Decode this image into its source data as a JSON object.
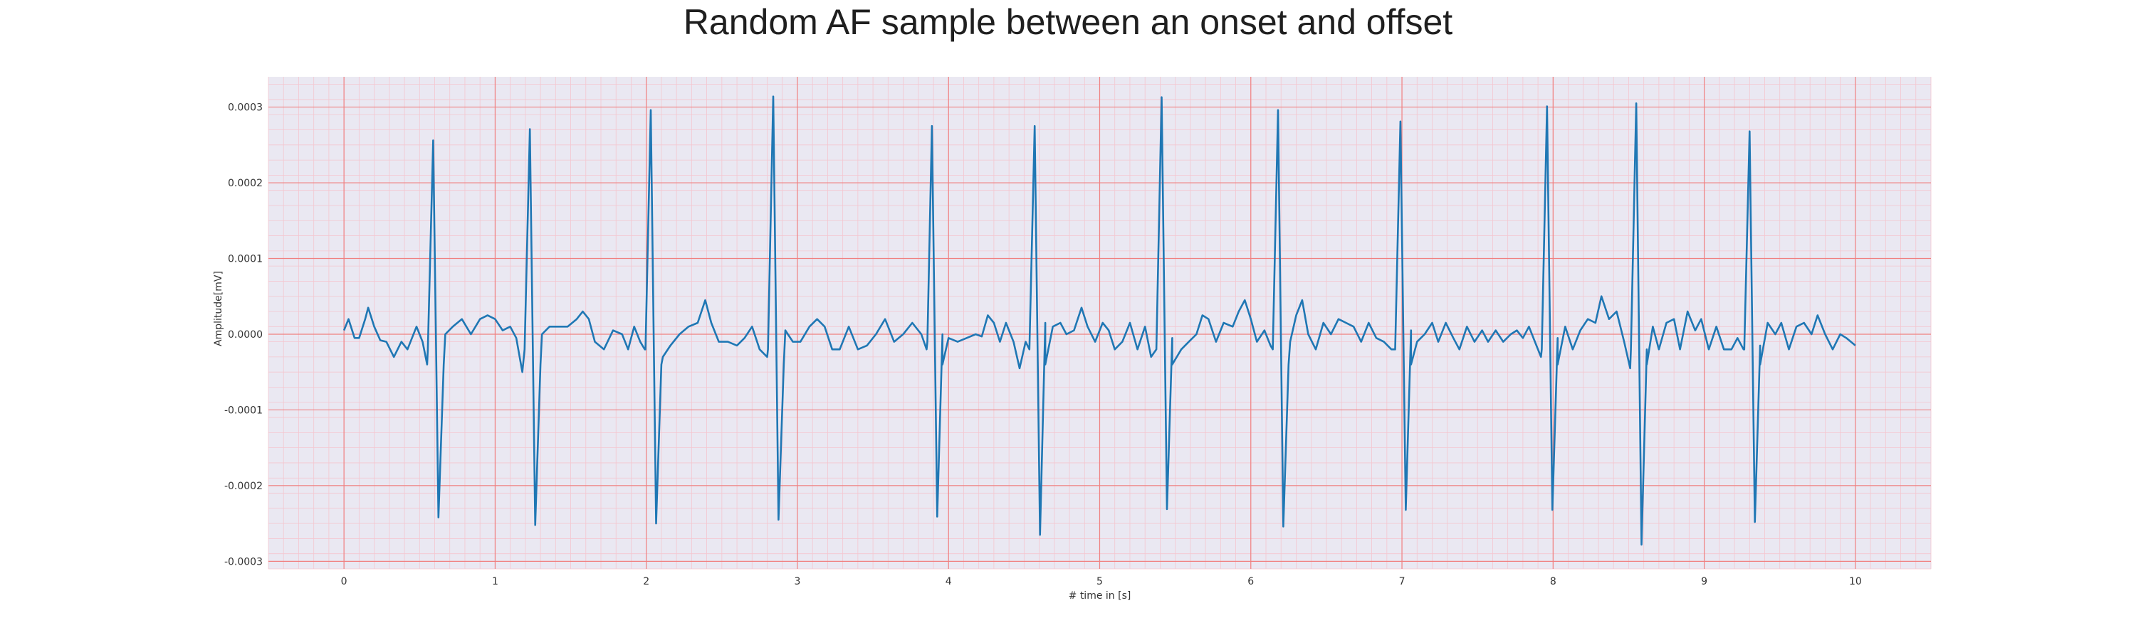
{
  "chart_data": {
    "type": "line",
    "title": "Random AF sample between an onset and offset",
    "xlabel": "# time in [s]",
    "ylabel": "Amplitude[mV]",
    "xlim": [
      -0.5,
      10.5
    ],
    "ylim": [
      -0.00031,
      0.00034
    ],
    "x_ticks": [
      0,
      1,
      2,
      3,
      4,
      5,
      6,
      7,
      8,
      9,
      10
    ],
    "x_tick_labels": [
      "0",
      "1",
      "2",
      "3",
      "4",
      "5",
      "6",
      "7",
      "8",
      "9",
      "10"
    ],
    "y_ticks": [
      0.0003,
      0.0002,
      0.0001,
      0.0,
      -0.0001,
      -0.0002,
      -0.0003
    ],
    "y_tick_labels": [
      "0.0003",
      "0.0002",
      "0.0001",
      "0.0000",
      "-0.0001",
      "-0.0002",
      "-0.0003"
    ],
    "grid": {
      "major": true,
      "minor": true
    },
    "colors": {
      "background": "#eae8f2",
      "major_grid": "#f08080",
      "minor_grid": "#f4c6cf",
      "line": "#1f77b4"
    },
    "beats": [
      {
        "t": 0.59,
        "peak": 0.000256,
        "trough": -0.000242
      },
      {
        "t": 1.23,
        "peak": 0.000271,
        "trough": -0.000252
      },
      {
        "t": 2.03,
        "peak": 0.000296,
        "trough": -0.00025
      },
      {
        "t": 2.84,
        "peak": 0.000314,
        "trough": -0.000245
      },
      {
        "t": 3.89,
        "peak": 0.000275,
        "trough": -0.000241
      },
      {
        "t": 4.57,
        "peak": 0.000275,
        "trough": -0.000265
      },
      {
        "t": 5.41,
        "peak": 0.000313,
        "trough": -0.000231
      },
      {
        "t": 6.18,
        "peak": 0.000296,
        "trough": -0.000254
      },
      {
        "t": 6.99,
        "peak": 0.000281,
        "trough": -0.000232
      },
      {
        "t": 7.96,
        "peak": 0.000301,
        "trough": -0.000232
      },
      {
        "t": 8.55,
        "peak": 0.000305,
        "trough": -0.000278
      },
      {
        "t": 9.3,
        "peak": 0.000268,
        "trough": -0.000248
      }
    ],
    "baseline": [
      [
        0.0,
        5e-06
      ],
      [
        0.03,
        2e-05
      ],
      [
        0.07,
        -5e-06
      ],
      [
        0.1,
        -5e-06
      ],
      [
        0.14,
        2e-05
      ],
      [
        0.16,
        3.5e-05
      ],
      [
        0.2,
        1e-05
      ],
      [
        0.24,
        -8e-06
      ],
      [
        0.28,
        -1e-05
      ],
      [
        0.33,
        -3e-05
      ],
      [
        0.38,
        -1e-05
      ],
      [
        0.42,
        -2e-05
      ],
      [
        0.48,
        1e-05
      ],
      [
        0.52,
        -1e-05
      ],
      [
        0.55,
        -4e-05
      ],
      [
        0.67,
        0.0
      ],
      [
        0.72,
        1e-05
      ],
      [
        0.78,
        2e-05
      ],
      [
        0.84,
        0.0
      ],
      [
        0.9,
        2e-05
      ],
      [
        0.95,
        2.5e-05
      ],
      [
        1.0,
        2e-05
      ],
      [
        1.05,
        5e-06
      ],
      [
        1.1,
        1e-05
      ],
      [
        1.14,
        -5e-06
      ],
      [
        1.18,
        -5e-05
      ],
      [
        1.31,
        0.0
      ],
      [
        1.36,
        1e-05
      ],
      [
        1.42,
        1e-05
      ],
      [
        1.48,
        1e-05
      ],
      [
        1.54,
        2e-05
      ],
      [
        1.58,
        3e-05
      ],
      [
        1.62,
        2e-05
      ],
      [
        1.66,
        -1e-05
      ],
      [
        1.72,
        -2e-05
      ],
      [
        1.78,
        5e-06
      ],
      [
        1.84,
        0.0
      ],
      [
        1.88,
        -2e-05
      ],
      [
        1.92,
        1e-05
      ],
      [
        1.96,
        -1e-05
      ],
      [
        1.99,
        -2e-05
      ],
      [
        2.11,
        -3e-05
      ],
      [
        2.16,
        -1.5e-05
      ],
      [
        2.22,
        0.0
      ],
      [
        2.28,
        1e-05
      ],
      [
        2.34,
        1.5e-05
      ],
      [
        2.39,
        4.5e-05
      ],
      [
        2.43,
        1.5e-05
      ],
      [
        2.48,
        -1e-05
      ],
      [
        2.54,
        -1e-05
      ],
      [
        2.6,
        -1.5e-05
      ],
      [
        2.65,
        -5e-06
      ],
      [
        2.7,
        1e-05
      ],
      [
        2.75,
        -2e-05
      ],
      [
        2.8,
        -3e-05
      ],
      [
        2.92,
        5e-06
      ],
      [
        2.97,
        -1e-05
      ],
      [
        3.02,
        -1e-05
      ],
      [
        3.08,
        1e-05
      ],
      [
        3.13,
        2e-05
      ],
      [
        3.18,
        1e-05
      ],
      [
        3.23,
        -2e-05
      ],
      [
        3.28,
        -2e-05
      ],
      [
        3.34,
        1e-05
      ],
      [
        3.4,
        -2e-05
      ],
      [
        3.46,
        -1.5e-05
      ],
      [
        3.52,
        0.0
      ],
      [
        3.58,
        2e-05
      ],
      [
        3.64,
        -1e-05
      ],
      [
        3.7,
        0.0
      ],
      [
        3.76,
        1.5e-05
      ],
      [
        3.82,
        0.0
      ],
      [
        3.86,
        -1e-05
      ],
      [
        3.96,
        0.0
      ],
      [
        4.0,
        -5e-06
      ],
      [
        4.06,
        -1e-05
      ],
      [
        4.12,
        -5e-06
      ],
      [
        4.18,
        0.0
      ],
      [
        4.22,
        -3e-06
      ],
      [
        4.26,
        2.5e-05
      ],
      [
        4.3,
        1.5e-05
      ],
      [
        4.34,
        -1e-05
      ],
      [
        4.38,
        1.5e-05
      ],
      [
        4.43,
        -1e-05
      ],
      [
        4.47,
        -4.5e-05
      ],
      [
        4.51,
        -1e-05
      ],
      [
        4.64,
        1.5e-05
      ],
      [
        4.69,
        1e-05
      ],
      [
        4.74,
        1.5e-05
      ],
      [
        4.78,
        0.0
      ],
      [
        4.83,
        5e-06
      ],
      [
        4.88,
        3.5e-05
      ],
      [
        4.92,
        1e-05
      ],
      [
        4.97,
        -1e-05
      ],
      [
        5.02,
        1.5e-05
      ],
      [
        5.06,
        5e-06
      ],
      [
        5.1,
        -2e-05
      ],
      [
        5.15,
        -1e-05
      ],
      [
        5.2,
        1.5e-05
      ],
      [
        5.25,
        -2e-05
      ],
      [
        5.3,
        1e-05
      ],
      [
        5.34,
        -3e-05
      ],
      [
        5.48,
        -5e-06
      ],
      [
        5.54,
        -2e-05
      ],
      [
        5.59,
        -1e-05
      ],
      [
        5.64,
        0.0
      ],
      [
        5.68,
        2.5e-05
      ],
      [
        5.72,
        2e-05
      ],
      [
        5.77,
        -1e-05
      ],
      [
        5.82,
        1.5e-05
      ],
      [
        5.88,
        1e-05
      ],
      [
        5.92,
        3e-05
      ],
      [
        5.96,
        4.5e-05
      ],
      [
        6.0,
        2e-05
      ],
      [
        6.04,
        -1e-05
      ],
      [
        6.09,
        5e-06
      ],
      [
        6.13,
        -1.5e-05
      ],
      [
        6.26,
        -1e-05
      ],
      [
        6.3,
        2.5e-05
      ],
      [
        6.34,
        4.5e-05
      ],
      [
        6.38,
        0.0
      ],
      [
        6.43,
        -2e-05
      ],
      [
        6.48,
        1.5e-05
      ],
      [
        6.53,
        0.0
      ],
      [
        6.58,
        2e-05
      ],
      [
        6.63,
        1.5e-05
      ],
      [
        6.68,
        1e-05
      ],
      [
        6.73,
        -1e-05
      ],
      [
        6.78,
        1.5e-05
      ],
      [
        6.83,
        -5e-06
      ],
      [
        6.88,
        -1e-05
      ],
      [
        6.93,
        -2e-05
      ],
      [
        7.06,
        5e-06
      ],
      [
        7.1,
        -1e-05
      ],
      [
        7.15,
        0.0
      ],
      [
        7.2,
        1.5e-05
      ],
      [
        7.24,
        -1e-05
      ],
      [
        7.29,
        1.5e-05
      ],
      [
        7.34,
        -5e-06
      ],
      [
        7.38,
        -2e-05
      ],
      [
        7.43,
        1e-05
      ],
      [
        7.48,
        -1e-05
      ],
      [
        7.53,
        5e-06
      ],
      [
        7.57,
        -1e-05
      ],
      [
        7.62,
        5e-06
      ],
      [
        7.67,
        -1e-05
      ],
      [
        7.72,
        0.0
      ],
      [
        7.76,
        5e-06
      ],
      [
        7.8,
        -5e-06
      ],
      [
        7.84,
        1e-05
      ],
      [
        7.88,
        -1e-05
      ],
      [
        7.92,
        -3e-05
      ],
      [
        8.03,
        -5e-06
      ],
      [
        8.08,
        1e-05
      ],
      [
        8.13,
        -2e-05
      ],
      [
        8.18,
        5e-06
      ],
      [
        8.23,
        2e-05
      ],
      [
        8.28,
        1.5e-05
      ],
      [
        8.32,
        5e-05
      ],
      [
        8.37,
        2e-05
      ],
      [
        8.42,
        3e-05
      ],
      [
        8.47,
        -1e-05
      ],
      [
        8.51,
        -4.5e-05
      ],
      [
        8.62,
        -2e-05
      ],
      [
        8.66,
        1e-05
      ],
      [
        8.7,
        -2e-05
      ],
      [
        8.75,
        1.5e-05
      ],
      [
        8.8,
        2e-05
      ],
      [
        8.84,
        -2e-05
      ],
      [
        8.89,
        3e-05
      ],
      [
        8.94,
        5e-06
      ],
      [
        8.98,
        2e-05
      ],
      [
        9.03,
        -2e-05
      ],
      [
        9.08,
        1e-05
      ],
      [
        9.13,
        -2e-05
      ],
      [
        9.18,
        -2e-05
      ],
      [
        9.22,
        -5e-06
      ],
      [
        9.26,
        -2e-05
      ],
      [
        9.37,
        -1.5e-05
      ],
      [
        9.42,
        1.5e-05
      ],
      [
        9.47,
        0.0
      ],
      [
        9.51,
        1.5e-05
      ],
      [
        9.56,
        -2e-05
      ],
      [
        9.61,
        1e-05
      ],
      [
        9.66,
        1.5e-05
      ],
      [
        9.71,
        0.0
      ],
      [
        9.75,
        2.5e-05
      ],
      [
        9.8,
        0.0
      ],
      [
        9.85,
        -2e-05
      ],
      [
        9.9,
        0.0
      ],
      [
        9.94,
        -5e-06
      ],
      [
        10.0,
        -1.5e-05
      ]
    ]
  }
}
